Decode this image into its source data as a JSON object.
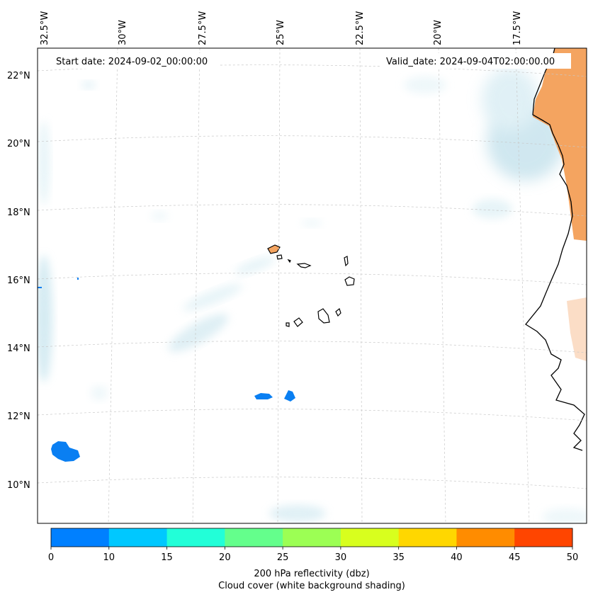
{
  "map": {
    "start_date_label": "Start date: 2024-09-02_00:00:00",
    "valid_date_label": "Valid_date: 2024-09-04T02:00:00.00",
    "lon_labels": [
      "32.5°W",
      "30°W",
      "27.5°W",
      "25°W",
      "22.5°W",
      "20°W",
      "17.5°W"
    ],
    "lat_labels": [
      "22°N",
      "20°N",
      "18°N",
      "16°N",
      "14°N",
      "12°N",
      "10°N"
    ],
    "gridlines": true,
    "land_color": "#f4a460",
    "coastline_color": "#000000",
    "cloud_shading_color": "#add8e6",
    "reflectivity_blob_color": "#0a7ff2"
  },
  "colorbar": {
    "ticks": [
      "0",
      "10",
      "15",
      "20",
      "25",
      "30",
      "35",
      "40",
      "45",
      "50"
    ],
    "colors": [
      "#0080ff",
      "#00c8ff",
      "#22ffd8",
      "#64ff8c",
      "#9cff54",
      "#d8ff1e",
      "#ffd700",
      "#ff8c00",
      "#ff4500"
    ],
    "label_line1": "200 hPa reflectivity (dbz)",
    "label_line2": "Cloud cover (white background shading)"
  }
}
